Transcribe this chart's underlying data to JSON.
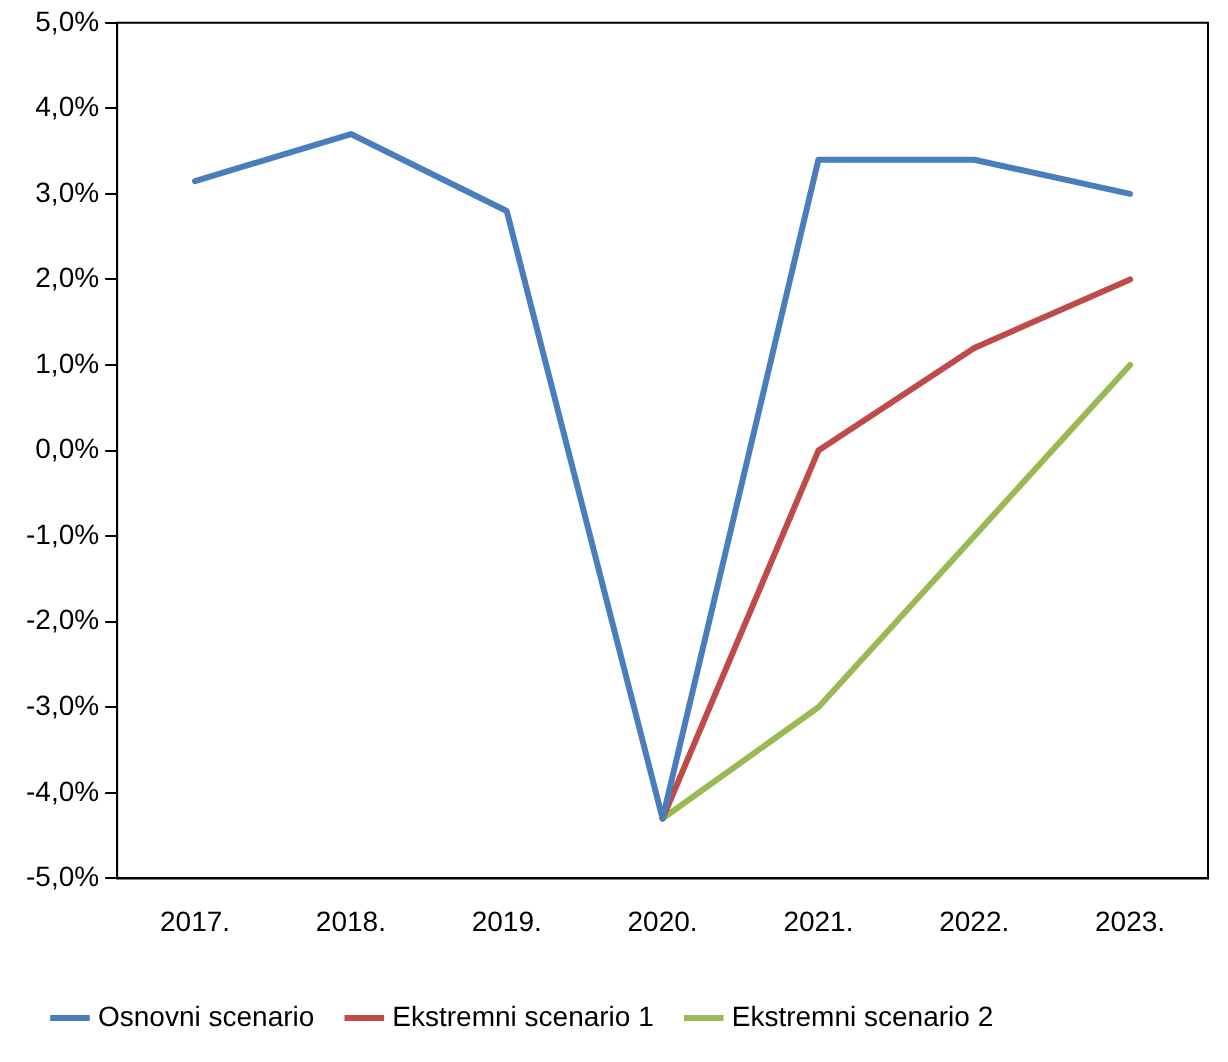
{
  "chart_data": {
    "type": "line",
    "categories": [
      "2017.",
      "2018.",
      "2019.",
      "2020.",
      "2021.",
      "2022.",
      "2023."
    ],
    "series": [
      {
        "name": "Osnovni scenario",
        "color": "#4a7ebb",
        "values": [
          3.15,
          3.7,
          2.8,
          -4.3,
          3.4,
          3.4,
          3.0
        ]
      },
      {
        "name": "Ekstremni scenario 1",
        "color": "#be4b48",
        "values": [
          null,
          null,
          null,
          -4.3,
          0.0,
          1.2,
          2.0
        ]
      },
      {
        "name": "Ekstremni scenario 2",
        "color": "#98b954",
        "values": [
          null,
          null,
          null,
          -4.3,
          -3.0,
          -1.0,
          1.0
        ]
      }
    ],
    "ylim": [
      -5,
      5
    ],
    "yticks": [
      {
        "value": -5,
        "label": "-5,0%"
      },
      {
        "value": -4,
        "label": "-4,0%"
      },
      {
        "value": -3,
        "label": "-3,0%"
      },
      {
        "value": -2,
        "label": "-2,0%"
      },
      {
        "value": -1,
        "label": "-1,0%"
      },
      {
        "value": 0,
        "label": "0,0%"
      },
      {
        "value": 1,
        "label": "1,0%"
      },
      {
        "value": 2,
        "label": "2,0%"
      },
      {
        "value": 3,
        "label": "3,0%"
      },
      {
        "value": 4,
        "label": "4,0%"
      },
      {
        "value": 5,
        "label": "5,0%"
      }
    ],
    "grid": false,
    "legend": "bottom",
    "marker": "none",
    "line_style": "solid"
  }
}
